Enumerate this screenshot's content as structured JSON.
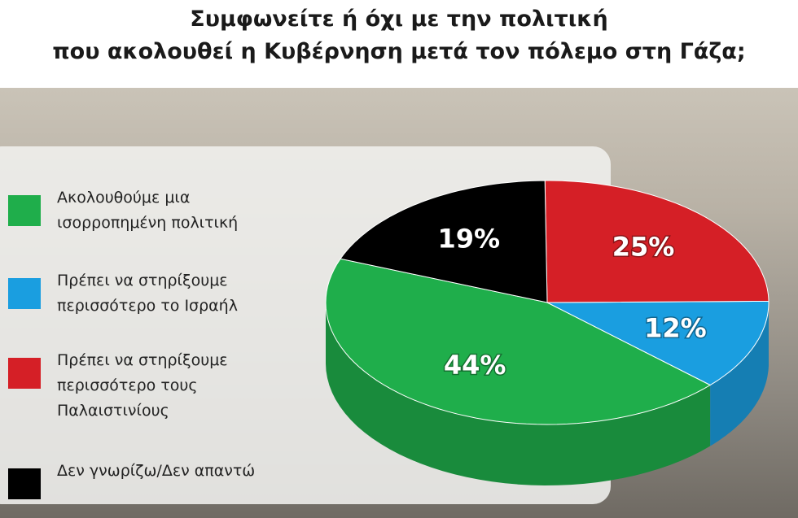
{
  "chart_data": {
    "type": "pie3d",
    "title": [
      "Συμφωνείτε ή όχι με την πολιτική",
      "που ακολουθεί η Κυβέρνηση μετά τον πόλεμο στη Γάζα;"
    ],
    "series": [
      {
        "name": "Ακολουθούμε μια ισορροπημένη πολιτική",
        "color": "#1fae4b",
        "values": [
          44
        ],
        "value_labels": [
          "44%"
        ]
      },
      {
        "name": "Πρέπει να στηρίξουμε περισσότερο το Ισραήλ",
        "color": "#1a9ee0",
        "values": [
          12
        ],
        "value_labels": [
          "12%"
        ]
      },
      {
        "name": "Πρέπει να στηρίξουμε περισσότερο τους Παλαιστινίους",
        "color": "#d51f26",
        "values": [
          25
        ],
        "value_labels": [
          "25%"
        ]
      },
      {
        "name": "Δεν γνωρίζω/Δεν απαντώ",
        "color": "#000000",
        "values": [
          19
        ],
        "value_labels": [
          "19%"
        ]
      }
    ],
    "legend": "left"
  }
}
